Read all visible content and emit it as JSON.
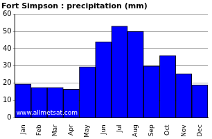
{
  "chart_data": {
    "type": "bar",
    "title": "Fort Simpson : precipitation (mm)",
    "categories": [
      "Jan",
      "Feb",
      "Mar",
      "Apr",
      "May",
      "Jun",
      "Jul",
      "Aug",
      "Sep",
      "Oct",
      "Nov",
      "Dec"
    ],
    "values": [
      19.5,
      17.5,
      17.5,
      16.5,
      29.5,
      44,
      53,
      50,
      30,
      36,
      25.5,
      19
    ],
    "color": "#0000ff",
    "ylim": [
      0,
      60
    ],
    "yticks": [
      0,
      10,
      20,
      30,
      40,
      50,
      60
    ],
    "grid": true,
    "annotations": [
      "www.allmetsat.com"
    ]
  }
}
